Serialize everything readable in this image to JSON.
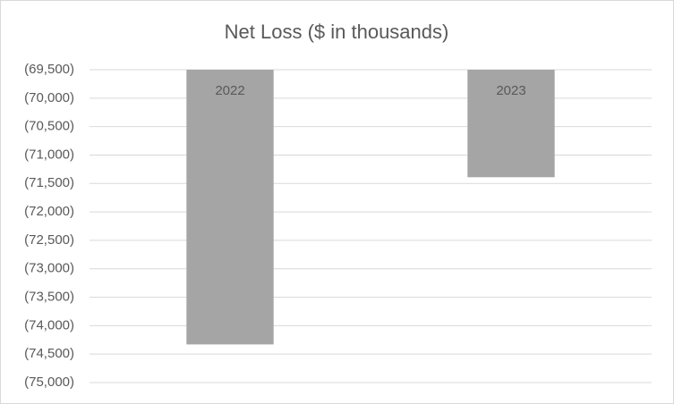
{
  "chart_data": {
    "type": "bar",
    "title": "Net Loss ($ in thousands)",
    "categories": [
      "2022",
      "2023"
    ],
    "values": [
      -74330,
      -71390
    ],
    "color": "#a5a5a5",
    "ylim": [
      -75000,
      -69500
    ],
    "yticks": [
      {
        "value": -69500,
        "label": "(69,500)"
      },
      {
        "value": -70000,
        "label": "(70,000)"
      },
      {
        "value": -70500,
        "label": "(70,500)"
      },
      {
        "value": -71000,
        "label": "(71,000)"
      },
      {
        "value": -71500,
        "label": "(71,500)"
      },
      {
        "value": -72000,
        "label": "(72,000)"
      },
      {
        "value": -72500,
        "label": "(72,500)"
      },
      {
        "value": -73000,
        "label": "(73,000)"
      },
      {
        "value": -73500,
        "label": "(73,500)"
      },
      {
        "value": -74000,
        "label": "(74,000)"
      },
      {
        "value": -74500,
        "label": "(74,500)"
      },
      {
        "value": -75000,
        "label": "(75,000)"
      }
    ],
    "grid": true
  }
}
